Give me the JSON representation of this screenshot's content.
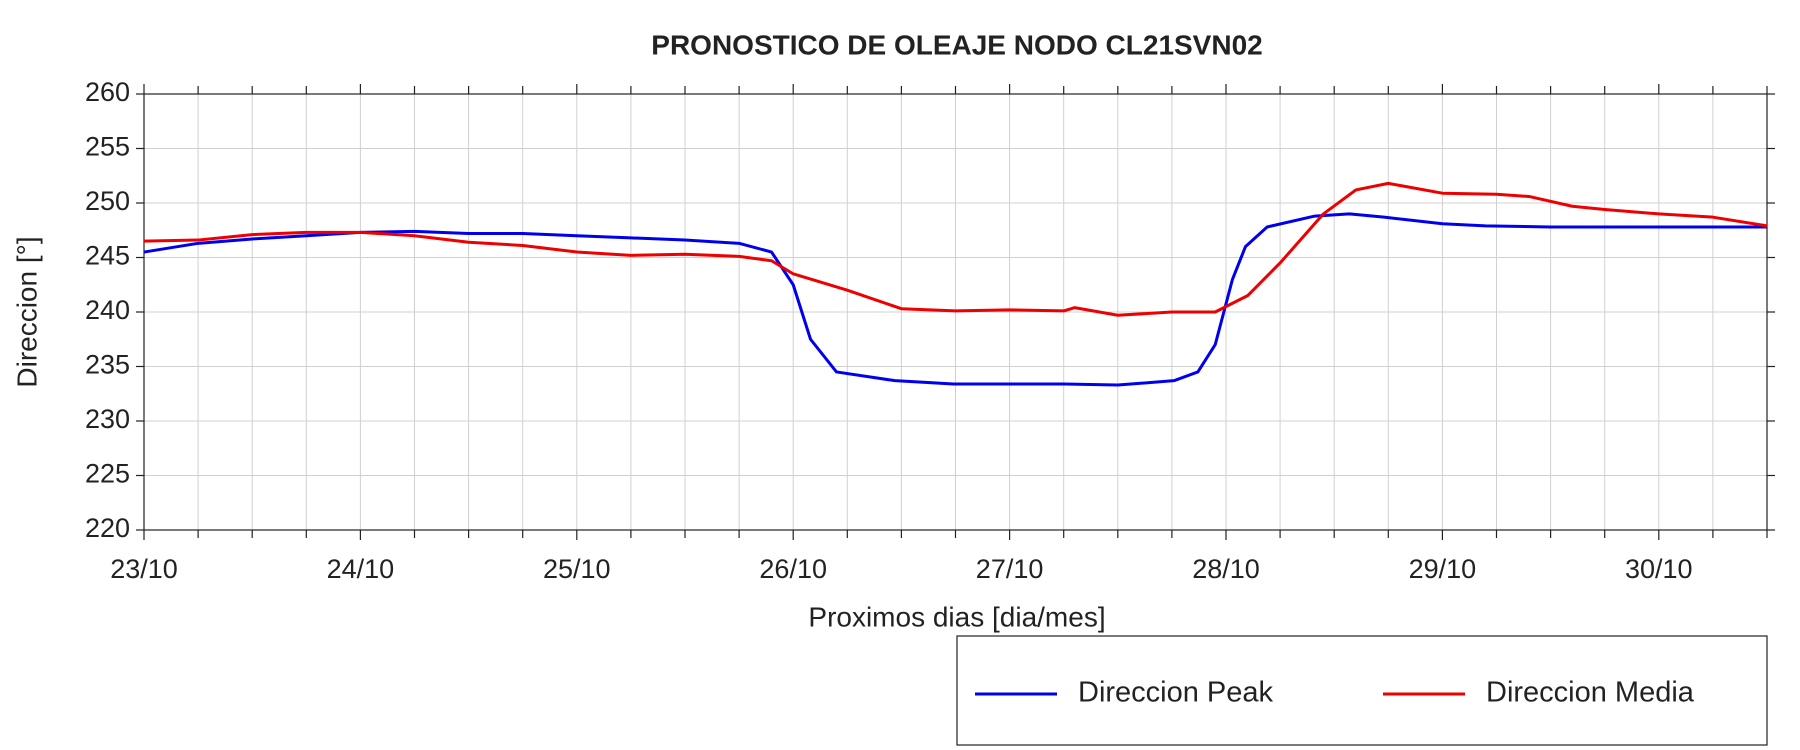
{
  "chart_data": {
    "type": "line",
    "title": "PRONOSTICO DE OLEAJE NODO CL21SVN02",
    "x_label": "Proximos dias [dia/mes]",
    "y_label": "Direccion [°]",
    "xlim": [
      0,
      7.5
    ],
    "xticks": [
      {
        "value": 0,
        "label": "23/10"
      },
      {
        "value": 1,
        "label": "24/10"
      },
      {
        "value": 2,
        "label": "25/10"
      },
      {
        "value": 3,
        "label": "26/10"
      },
      {
        "value": 4,
        "label": "27/10"
      },
      {
        "value": 5,
        "label": "28/10"
      },
      {
        "value": 6,
        "label": "29/10"
      },
      {
        "value": 7,
        "label": "30/10"
      }
    ],
    "x_minor_ticks": [
      0.25,
      0.5,
      0.75,
      1.25,
      1.5,
      1.75,
      2.25,
      2.5,
      2.75,
      3.25,
      3.5,
      3.75,
      4.25,
      4.5,
      4.75,
      5.25,
      5.5,
      5.75,
      6.25,
      6.5,
      6.75,
      7.25,
      7.5
    ],
    "ylim": [
      220,
      260
    ],
    "yticks": [
      220,
      225,
      230,
      235,
      240,
      245,
      250,
      255,
      260
    ],
    "grid": true,
    "legend": "bottom-right",
    "series": [
      {
        "name": "Direccion Peak",
        "color": "#0000ee",
        "x": [
          0,
          0.25,
          0.5,
          0.75,
          1.0,
          1.25,
          1.5,
          1.75,
          2.0,
          2.25,
          2.5,
          2.75,
          2.9,
          3.0,
          3.08,
          3.2,
          3.47,
          3.74,
          4.0,
          4.25,
          4.5,
          4.76,
          4.87,
          4.95,
          5.03,
          5.09,
          5.19,
          5.41,
          5.57,
          5.73,
          6.0,
          6.2,
          6.5,
          6.97,
          7.5
        ],
        "values": [
          245.5,
          246.3,
          246.7,
          247.0,
          247.3,
          247.4,
          247.2,
          247.2,
          247.0,
          246.8,
          246.6,
          246.3,
          245.5,
          242.5,
          237.5,
          234.5,
          233.7,
          233.4,
          233.4,
          233.4,
          233.3,
          233.7,
          234.5,
          237.0,
          243.0,
          246.0,
          247.8,
          248.8,
          249.0,
          248.7,
          248.1,
          247.9,
          247.8,
          247.8,
          247.8
        ]
      },
      {
        "name": "Direccion Media",
        "color": "#ee0000",
        "x": [
          0,
          0.25,
          0.5,
          0.75,
          1.0,
          1.25,
          1.5,
          1.75,
          2.0,
          2.25,
          2.5,
          2.75,
          2.9,
          3.0,
          3.25,
          3.5,
          3.75,
          4.0,
          4.25,
          4.3,
          4.5,
          4.75,
          4.95,
          5.1,
          5.25,
          5.45,
          5.6,
          5.75,
          6.0,
          6.25,
          6.4,
          6.6,
          6.75,
          7.0,
          7.25,
          7.5
        ],
        "values": [
          246.5,
          246.6,
          247.1,
          247.3,
          247.3,
          247.0,
          246.4,
          246.1,
          245.5,
          245.2,
          245.3,
          245.1,
          244.7,
          243.5,
          242.0,
          240.3,
          240.1,
          240.2,
          240.1,
          240.4,
          239.7,
          240.0,
          240.0,
          241.5,
          244.5,
          249.0,
          251.2,
          251.8,
          250.9,
          250.8,
          250.6,
          249.7,
          249.4,
          249.0,
          248.7,
          247.9
        ]
      }
    ]
  }
}
